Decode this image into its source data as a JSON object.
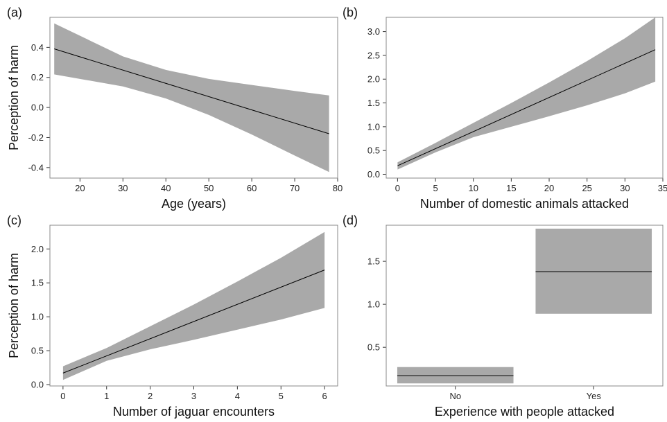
{
  "chart_data": [
    {
      "panel_label": "(a)",
      "type": "line",
      "xlabel": "Age (years)",
      "ylabel": "Perception of harm",
      "xlim": [
        13,
        80
      ],
      "ylim": [
        -0.47,
        0.6
      ],
      "xticks": [
        "20",
        "30",
        "40",
        "50",
        "60",
        "70",
        "80"
      ],
      "yticks": [
        "0.4",
        "0.2",
        "0.0",
        "-0.2",
        "-0.4"
      ],
      "fit": {
        "x": [
          14,
          78
        ],
        "y": [
          0.39,
          -0.175
        ]
      },
      "band": {
        "x": [
          14,
          30,
          40,
          50,
          60,
          70,
          78
        ],
        "upper": [
          0.56,
          0.34,
          0.25,
          0.19,
          0.15,
          0.11,
          0.08
        ],
        "lower": [
          0.22,
          0.14,
          0.06,
          -0.05,
          -0.18,
          -0.32,
          -0.43
        ]
      }
    },
    {
      "panel_label": "(b)",
      "type": "line",
      "xlabel": "Number of domestic animals attacked",
      "ylabel": "",
      "xlim": [
        -1.5,
        35
      ],
      "ylim": [
        -0.08,
        3.3
      ],
      "xticks": [
        "0",
        "5",
        "10",
        "15",
        "20",
        "25",
        "30",
        "35"
      ],
      "yticks": [
        "3.0",
        "2.5",
        "2.0",
        "1.5",
        "1.0",
        "0.5",
        "0.0"
      ],
      "fit": {
        "x": [
          0,
          34
        ],
        "y": [
          0.18,
          2.62
        ]
      },
      "band": {
        "x": [
          0,
          5,
          10,
          15,
          20,
          25,
          30,
          34
        ],
        "upper": [
          0.25,
          0.66,
          1.08,
          1.5,
          1.93,
          2.38,
          2.86,
          3.3
        ],
        "lower": [
          0.1,
          0.46,
          0.78,
          1.0,
          1.22,
          1.45,
          1.7,
          1.95
        ]
      }
    },
    {
      "panel_label": "(c)",
      "type": "line",
      "xlabel": "Number of jaguar encounters",
      "ylabel": "Perception of harm",
      "xlim": [
        -0.3,
        6.3
      ],
      "ylim": [
        -0.02,
        2.35
      ],
      "xticks": [
        "0",
        "1",
        "2",
        "3",
        "4",
        "5",
        "6"
      ],
      "yticks": [
        "2.0",
        "1.5",
        "1.0",
        "0.5",
        "0.0"
      ],
      "fit": {
        "x": [
          0,
          6
        ],
        "y": [
          0.17,
          1.69
        ]
      },
      "band": {
        "x": [
          0,
          1,
          2,
          3,
          4,
          5,
          6
        ],
        "upper": [
          0.27,
          0.54,
          0.86,
          1.18,
          1.52,
          1.87,
          2.25
        ],
        "lower": [
          0.07,
          0.35,
          0.52,
          0.66,
          0.81,
          0.96,
          1.13
        ]
      }
    },
    {
      "panel_label": "(d)",
      "type": "bar",
      "xlabel": "Experience with people attacked",
      "ylabel": "",
      "ylim": [
        0.05,
        1.92
      ],
      "categories": [
        "No",
        "Yes"
      ],
      "yticks": [
        "1.5",
        "1.0",
        "0.5"
      ],
      "estimate": [
        0.17,
        1.38
      ],
      "upper": [
        0.27,
        1.88
      ],
      "lower": [
        0.08,
        0.89
      ]
    }
  ]
}
